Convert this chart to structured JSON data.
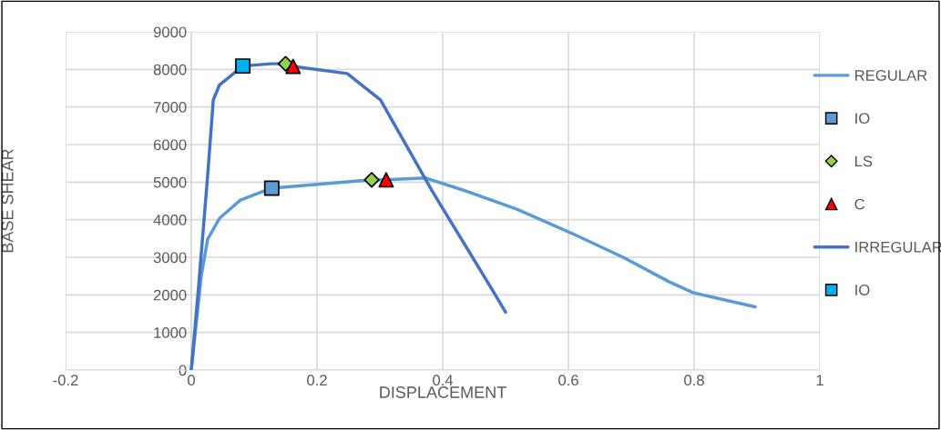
{
  "chart_data": {
    "type": "line",
    "xlabel": "DISPLACEMENT",
    "ylabel": "BASE SHEAR",
    "xlim": [
      -0.2,
      1
    ],
    "xticks": [
      -0.2,
      0,
      0.2,
      0.4,
      0.6,
      0.8,
      1
    ],
    "ylim": [
      0,
      9000
    ],
    "yticks": [
      0,
      1000,
      2000,
      3000,
      4000,
      5000,
      6000,
      7000,
      8000,
      9000
    ],
    "grid": true,
    "legend": "right",
    "series": [
      {
        "name": "REGULAR",
        "color": "#5b9bd5",
        "marker": "none",
        "x": [
          0,
          0.016,
          0.026,
          0.045,
          0.078,
          0.128,
          0.287,
          0.31,
          0.373,
          0.436,
          0.518,
          0.605,
          0.687,
          0.76,
          0.798,
          0.897
        ],
        "values": [
          0,
          2520,
          3480,
          4040,
          4520,
          4840,
          5060,
          5060,
          5110,
          4770,
          4280,
          3640,
          3000,
          2350,
          2060,
          1680
        ]
      },
      {
        "name": "IO",
        "type": "scatter",
        "color": "#5b9bd5",
        "marker": "square",
        "x": [
          0.128
        ],
        "values": [
          4840
        ]
      },
      {
        "name": "LS",
        "type": "scatter",
        "color": "#92d050",
        "marker": "diamond",
        "x": [
          0.287
        ],
        "values": [
          5060
        ]
      },
      {
        "name": "C",
        "type": "scatter",
        "color": "#ff0000",
        "marker": "triangle",
        "x": [
          0.31
        ],
        "values": [
          5060
        ]
      },
      {
        "name": "IRREGULAR",
        "color": "#4472c4",
        "marker": "none",
        "x": [
          0,
          0.011,
          0.026,
          0.035,
          0.045,
          0.082,
          0.127,
          0.15,
          0.162,
          0.248,
          0.301,
          0.383,
          0.48,
          0.5
        ],
        "values": [
          0,
          2100,
          5170,
          7190,
          7590,
          8090,
          8150,
          8150,
          8080,
          7890,
          7190,
          4770,
          2100,
          1540
        ]
      },
      {
        "name": "IO",
        "type": "scatter",
        "color": "#00b0f0",
        "marker": "square",
        "x": [
          0.082
        ],
        "values": [
          8090
        ]
      },
      {
        "type": "scatter",
        "color": "#92d050",
        "marker": "diamond",
        "x": [
          0.15
        ],
        "values": [
          8150
        ]
      },
      {
        "type": "scatter",
        "color": "#ff0000",
        "marker": "triangle",
        "x": [
          0.162
        ],
        "values": [
          8080
        ]
      }
    ]
  }
}
